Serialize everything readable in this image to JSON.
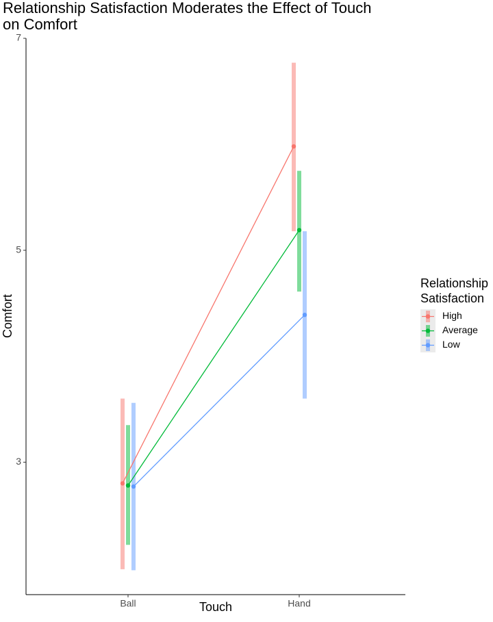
{
  "chart_data": {
    "type": "line",
    "title": "Relationship Satisfaction Moderates the Effect of Touch on Comfort",
    "xlabel": "Touch",
    "ylabel": "Comfort",
    "categories": [
      "Ball",
      "Hand"
    ],
    "ylim": [
      1.75,
      7
    ],
    "yticks": [
      "3",
      "5",
      "7"
    ],
    "grid": false,
    "legend_title": "Relationship Satisfaction",
    "legend_position": "right",
    "series": [
      {
        "name": "High",
        "color": "#F8766D",
        "values": [
          2.8,
          5.98
        ],
        "lower": [
          1.99,
          5.18
        ],
        "upper": [
          3.6,
          6.77
        ]
      },
      {
        "name": "Average",
        "color": "#00BA38",
        "values": [
          2.78,
          5.19
        ],
        "lower": [
          2.22,
          4.61
        ],
        "upper": [
          3.35,
          5.75
        ]
      },
      {
        "name": "Low",
        "color": "#619CFF",
        "values": [
          2.77,
          4.39
        ],
        "lower": [
          1.98,
          3.6
        ],
        "upper": [
          3.56,
          5.18
        ]
      }
    ]
  }
}
